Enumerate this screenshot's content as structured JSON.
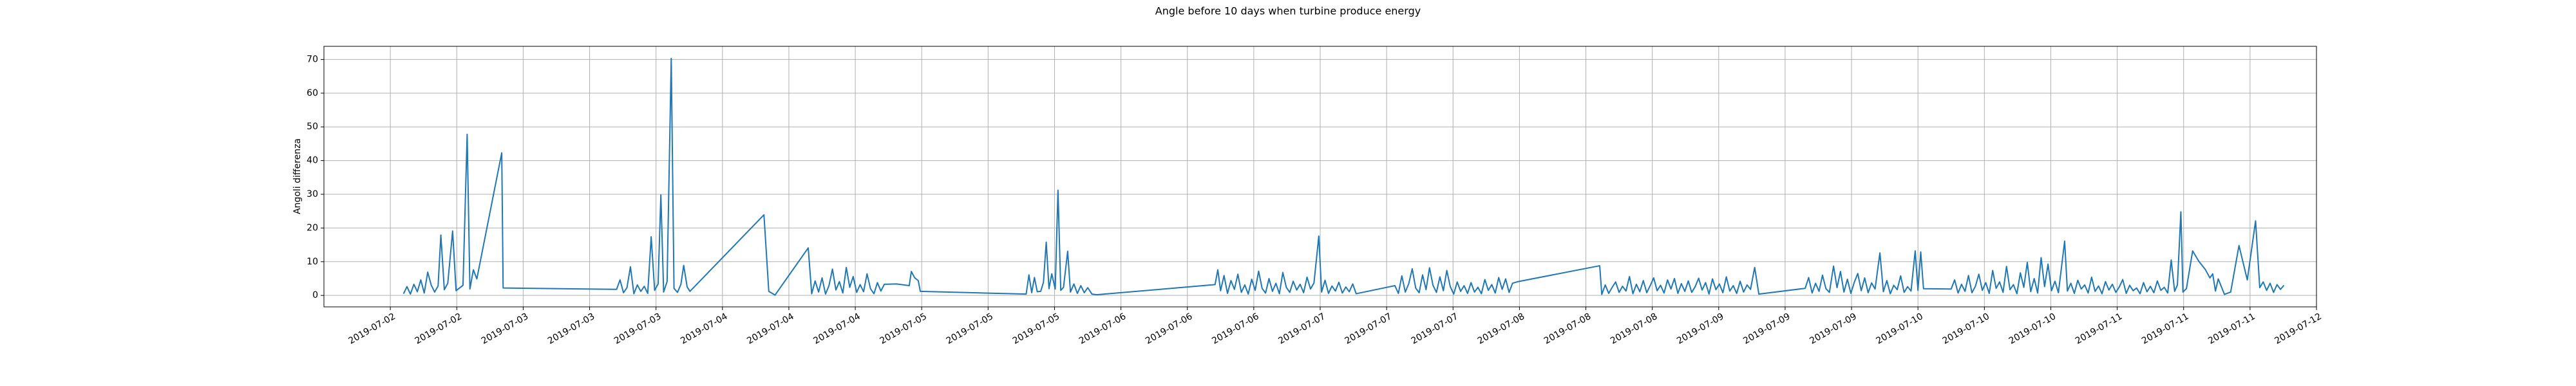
{
  "chart_data": {
    "type": "line",
    "title": "Angle before 10 days when turbine produce energy",
    "y_label": "Angoli differenza",
    "color": "#1f77b4",
    "grid": true,
    "xlim": [
      "2019-07-02T00:00",
      "2019-07-12T00:00"
    ],
    "xticks": [
      {
        "value": "2019-07-02T08:00",
        "label": "2019-07-02"
      },
      {
        "value": "2019-07-02T16:00",
        "label": "2019-07-02"
      },
      {
        "value": "2019-07-03T00:00",
        "label": "2019-07-03"
      },
      {
        "value": "2019-07-03T08:00",
        "label": "2019-07-03"
      },
      {
        "value": "2019-07-03T16:00",
        "label": "2019-07-03"
      },
      {
        "value": "2019-07-04T00:00",
        "label": "2019-07-04"
      },
      {
        "value": "2019-07-04T08:00",
        "label": "2019-07-04"
      },
      {
        "value": "2019-07-04T16:00",
        "label": "2019-07-04"
      },
      {
        "value": "2019-07-05T00:00",
        "label": "2019-07-05"
      },
      {
        "value": "2019-07-05T08:00",
        "label": "2019-07-05"
      },
      {
        "value": "2019-07-05T16:00",
        "label": "2019-07-05"
      },
      {
        "value": "2019-07-06T00:00",
        "label": "2019-07-06"
      },
      {
        "value": "2019-07-06T08:00",
        "label": "2019-07-06"
      },
      {
        "value": "2019-07-06T16:00",
        "label": "2019-07-06"
      },
      {
        "value": "2019-07-07T00:00",
        "label": "2019-07-07"
      },
      {
        "value": "2019-07-07T08:00",
        "label": "2019-07-07"
      },
      {
        "value": "2019-07-07T16:00",
        "label": "2019-07-07"
      },
      {
        "value": "2019-07-08T00:00",
        "label": "2019-07-08"
      },
      {
        "value": "2019-07-08T08:00",
        "label": "2019-07-08"
      },
      {
        "value": "2019-07-08T16:00",
        "label": "2019-07-08"
      },
      {
        "value": "2019-07-09T00:00",
        "label": "2019-07-09"
      },
      {
        "value": "2019-07-09T08:00",
        "label": "2019-07-09"
      },
      {
        "value": "2019-07-09T16:00",
        "label": "2019-07-09"
      },
      {
        "value": "2019-07-10T00:00",
        "label": "2019-07-10"
      },
      {
        "value": "2019-07-10T08:00",
        "label": "2019-07-10"
      },
      {
        "value": "2019-07-10T16:00",
        "label": "2019-07-10"
      },
      {
        "value": "2019-07-11T00:00",
        "label": "2019-07-11"
      },
      {
        "value": "2019-07-11T08:00",
        "label": "2019-07-11"
      },
      {
        "value": "2019-07-11T16:00",
        "label": "2019-07-11"
      },
      {
        "value": "2019-07-12T00:00",
        "label": "2019-07-12"
      }
    ],
    "ylim": [
      -3.4,
      73.9
    ],
    "yticks": [
      0,
      10,
      20,
      30,
      40,
      50,
      60,
      70
    ],
    "x": [
      "2019-07-02T09:35",
      "2019-07-02T10:00",
      "2019-07-02T10:25",
      "2019-07-02T10:50",
      "2019-07-02T11:15",
      "2019-07-02T11:40",
      "2019-07-02T12:05",
      "2019-07-02T12:30",
      "2019-07-02T12:55",
      "2019-07-02T13:20",
      "2019-07-02T13:45",
      "2019-07-02T14:05",
      "2019-07-02T14:30",
      "2019-07-02T14:55",
      "2019-07-02T15:30",
      "2019-07-02T15:55",
      "2019-07-02T16:20",
      "2019-07-02T16:45",
      "2019-07-02T17:15",
      "2019-07-02T17:35",
      "2019-07-02T18:00",
      "2019-07-02T18:25",
      "2019-07-02T21:25",
      "2019-07-02T21:35",
      "2019-07-03T11:15",
      "2019-07-03T11:40",
      "2019-07-03T12:05",
      "2019-07-03T12:30",
      "2019-07-03T12:55",
      "2019-07-03T13:20",
      "2019-07-03T13:45",
      "2019-07-03T14:10",
      "2019-07-03T14:35",
      "2019-07-03T15:00",
      "2019-07-03T15:25",
      "2019-07-03T15:50",
      "2019-07-03T16:15",
      "2019-07-03T16:35",
      "2019-07-03T16:55",
      "2019-07-03T17:20",
      "2019-07-03T17:50",
      "2019-07-03T18:10",
      "2019-07-03T18:35",
      "2019-07-03T19:00",
      "2019-07-03T19:20",
      "2019-07-03T19:45",
      "2019-07-03T20:05",
      "2019-07-04T05:00",
      "2019-07-04T05:35",
      "2019-07-04T06:20",
      "2019-07-04T10:20",
      "2019-07-04T10:45",
      "2019-07-04T11:10",
      "2019-07-04T11:35",
      "2019-07-04T12:00",
      "2019-07-04T12:25",
      "2019-07-04T12:50",
      "2019-07-04T13:15",
      "2019-07-04T13:40",
      "2019-07-04T14:05",
      "2019-07-04T14:30",
      "2019-07-04T14:55",
      "2019-07-04T15:20",
      "2019-07-04T15:45",
      "2019-07-04T16:10",
      "2019-07-04T16:35",
      "2019-07-04T17:00",
      "2019-07-04T17:25",
      "2019-07-04T17:50",
      "2019-07-04T18:15",
      "2019-07-04T18:40",
      "2019-07-04T19:05",
      "2019-07-04T19:30",
      "2019-07-04T21:00",
      "2019-07-04T22:30",
      "2019-07-04T22:45",
      "2019-07-04T23:10",
      "2019-07-04T23:35",
      "2019-07-04T23:50",
      "2019-07-05T12:35",
      "2019-07-05T12:55",
      "2019-07-05T13:15",
      "2019-07-05T13:35",
      "2019-07-05T13:55",
      "2019-07-05T14:20",
      "2019-07-05T14:40",
      "2019-07-05T15:00",
      "2019-07-05T15:20",
      "2019-07-05T15:40",
      "2019-07-05T16:05",
      "2019-07-05T16:25",
      "2019-07-05T16:45",
      "2019-07-05T17:05",
      "2019-07-05T17:35",
      "2019-07-05T17:55",
      "2019-07-05T18:20",
      "2019-07-05T18:45",
      "2019-07-05T19:10",
      "2019-07-05T19:35",
      "2019-07-05T20:00",
      "2019-07-05T20:30",
      "2019-07-05T21:05",
      "2019-07-06T11:20",
      "2019-07-06T11:40",
      "2019-07-06T12:00",
      "2019-07-06T12:25",
      "2019-07-06T12:50",
      "2019-07-06T13:15",
      "2019-07-06T13:40",
      "2019-07-06T14:05",
      "2019-07-06T14:30",
      "2019-07-06T14:55",
      "2019-07-06T15:20",
      "2019-07-06T15:45",
      "2019-07-06T16:10",
      "2019-07-06T16:35",
      "2019-07-06T17:00",
      "2019-07-06T17:25",
      "2019-07-06T17:50",
      "2019-07-06T18:15",
      "2019-07-06T18:40",
      "2019-07-06T19:05",
      "2019-07-06T19:30",
      "2019-07-06T19:55",
      "2019-07-06T20:20",
      "2019-07-06T20:45",
      "2019-07-06T21:10",
      "2019-07-06T21:35",
      "2019-07-06T22:00",
      "2019-07-06T22:25",
      "2019-07-06T22:50",
      "2019-07-06T23:15",
      "2019-07-06T23:50",
      "2019-07-07T00:10",
      "2019-07-07T00:35",
      "2019-07-07T01:00",
      "2019-07-07T01:25",
      "2019-07-07T01:50",
      "2019-07-07T02:15",
      "2019-07-07T02:40",
      "2019-07-07T03:05",
      "2019-07-07T03:30",
      "2019-07-07T03:55",
      "2019-07-07T04:20",
      "2019-07-07T09:00",
      "2019-07-07T09:25",
      "2019-07-07T09:50",
      "2019-07-07T10:15",
      "2019-07-07T10:40",
      "2019-07-07T11:05",
      "2019-07-07T11:30",
      "2019-07-07T11:55",
      "2019-07-07T12:20",
      "2019-07-07T12:45",
      "2019-07-07T13:10",
      "2019-07-07T13:35",
      "2019-07-07T14:00",
      "2019-07-07T14:25",
      "2019-07-07T14:50",
      "2019-07-07T15:15",
      "2019-07-07T15:40",
      "2019-07-07T16:05",
      "2019-07-07T16:30",
      "2019-07-07T16:55",
      "2019-07-07T17:20",
      "2019-07-07T17:45",
      "2019-07-07T18:10",
      "2019-07-07T18:35",
      "2019-07-07T19:00",
      "2019-07-07T19:25",
      "2019-07-07T19:50",
      "2019-07-07T20:15",
      "2019-07-07T20:40",
      "2019-07-07T21:05",
      "2019-07-07T21:30",
      "2019-07-07T21:55",
      "2019-07-07T22:20",
      "2019-07-07T22:45",
      "2019-07-07T23:10",
      "2019-07-07T23:50",
      "2019-07-08T09:40",
      "2019-07-08T09:55",
      "2019-07-08T10:20",
      "2019-07-08T10:45",
      "2019-07-08T11:10",
      "2019-07-08T11:35",
      "2019-07-08T12:00",
      "2019-07-08T12:25",
      "2019-07-08T12:50",
      "2019-07-08T13:15",
      "2019-07-08T13:40",
      "2019-07-08T14:05",
      "2019-07-08T14:30",
      "2019-07-08T14:55",
      "2019-07-08T15:20",
      "2019-07-08T15:45",
      "2019-07-08T16:10",
      "2019-07-08T16:35",
      "2019-07-08T17:00",
      "2019-07-08T17:25",
      "2019-07-08T17:50",
      "2019-07-08T18:15",
      "2019-07-08T18:40",
      "2019-07-08T19:05",
      "2019-07-08T19:30",
      "2019-07-08T19:55",
      "2019-07-08T20:20",
      "2019-07-08T20:45",
      "2019-07-08T21:10",
      "2019-07-08T21:35",
      "2019-07-08T22:00",
      "2019-07-08T22:25",
      "2019-07-08T22:50",
      "2019-07-08T23:15",
      "2019-07-08T23:40",
      "2019-07-09T00:05",
      "2019-07-09T00:30",
      "2019-07-09T00:55",
      "2019-07-09T01:20",
      "2019-07-09T01:45",
      "2019-07-09T02:10",
      "2019-07-09T02:35",
      "2019-07-09T03:00",
      "2019-07-09T03:25",
      "2019-07-09T03:50",
      "2019-07-09T04:20",
      "2019-07-09T04:50",
      "2019-07-09T10:25",
      "2019-07-09T10:50",
      "2019-07-09T11:15",
      "2019-07-09T11:40",
      "2019-07-09T12:05",
      "2019-07-09T12:30",
      "2019-07-09T12:55",
      "2019-07-09T13:20",
      "2019-07-09T13:50",
      "2019-07-09T14:15",
      "2019-07-09T14:40",
      "2019-07-09T15:05",
      "2019-07-09T15:30",
      "2019-07-09T15:55",
      "2019-07-09T16:20",
      "2019-07-09T16:45",
      "2019-07-09T17:10",
      "2019-07-09T17:35",
      "2019-07-09T18:00",
      "2019-07-09T18:25",
      "2019-07-09T18:50",
      "2019-07-09T19:25",
      "2019-07-09T19:50",
      "2019-07-09T20:15",
      "2019-07-09T20:40",
      "2019-07-09T21:05",
      "2019-07-09T21:30",
      "2019-07-09T21:55",
      "2019-07-09T22:20",
      "2019-07-09T22:45",
      "2019-07-09T23:10",
      "2019-07-09T23:40",
      "2019-07-10T00:00",
      "2019-07-10T00:20",
      "2019-07-10T00:40",
      "2019-07-10T04:00",
      "2019-07-10T04:25",
      "2019-07-10T04:50",
      "2019-07-10T05:15",
      "2019-07-10T05:40",
      "2019-07-10T06:05",
      "2019-07-10T06:30",
      "2019-07-10T06:55",
      "2019-07-10T07:20",
      "2019-07-10T07:45",
      "2019-07-10T08:10",
      "2019-07-10T08:35",
      "2019-07-10T09:00",
      "2019-07-10T09:25",
      "2019-07-10T09:50",
      "2019-07-10T10:15",
      "2019-07-10T10:40",
      "2019-07-10T11:05",
      "2019-07-10T11:30",
      "2019-07-10T11:55",
      "2019-07-10T12:20",
      "2019-07-10T12:45",
      "2019-07-10T13:10",
      "2019-07-10T13:35",
      "2019-07-10T14:00",
      "2019-07-10T14:25",
      "2019-07-10T14:50",
      "2019-07-10T15:15",
      "2019-07-10T15:40",
      "2019-07-10T16:05",
      "2019-07-10T16:30",
      "2019-07-10T16:55",
      "2019-07-10T17:40",
      "2019-07-10T18:00",
      "2019-07-10T18:25",
      "2019-07-10T18:50",
      "2019-07-10T19:15",
      "2019-07-10T19:40",
      "2019-07-10T20:05",
      "2019-07-10T20:30",
      "2019-07-10T20:55",
      "2019-07-10T21:20",
      "2019-07-10T21:45",
      "2019-07-10T22:10",
      "2019-07-10T22:35",
      "2019-07-10T23:00",
      "2019-07-10T23:25",
      "2019-07-10T23:50",
      "2019-07-11T00:15",
      "2019-07-11T00:40",
      "2019-07-11T01:05",
      "2019-07-11T01:30",
      "2019-07-11T01:55",
      "2019-07-11T02:20",
      "2019-07-11T02:45",
      "2019-07-11T03:10",
      "2019-07-11T03:35",
      "2019-07-11T04:00",
      "2019-07-11T04:25",
      "2019-07-11T04:50",
      "2019-07-11T05:15",
      "2019-07-11T05:40",
      "2019-07-11T06:05",
      "2019-07-11T06:30",
      "2019-07-11T06:55",
      "2019-07-11T07:15",
      "2019-07-11T07:40",
      "2019-07-11T07:55",
      "2019-07-11T08:20",
      "2019-07-11T09:05",
      "2019-07-11T09:50",
      "2019-07-11T10:35",
      "2019-07-11T11:10",
      "2019-07-11T11:30",
      "2019-07-11T11:50",
      "2019-07-11T12:10",
      "2019-07-11T12:55",
      "2019-07-11T13:40",
      "2019-07-11T14:40",
      "2019-07-11T15:40",
      "2019-07-11T16:40",
      "2019-07-11T17:10",
      "2019-07-11T17:35",
      "2019-07-11T18:00",
      "2019-07-11T18:25",
      "2019-07-11T18:50",
      "2019-07-11T19:15",
      "2019-07-11T19:40",
      "2019-07-11T20:05"
    ],
    "values": [
      0.5,
      2.6,
      0.4,
      3.3,
      1.1,
      4.6,
      0.7,
      6.9,
      3.1,
      1.0,
      2.8,
      17.9,
      1.7,
      3.6,
      19.1,
      1.4,
      2.2,
      3.0,
      47.8,
      1.9,
      7.6,
      4.9,
      42.3,
      2.2,
      1.8,
      4.6,
      0.8,
      2.3,
      8.5,
      0.5,
      3.1,
      1.2,
      2.7,
      0.6,
      17.4,
      1.5,
      3.4,
      29.8,
      1.0,
      4.1,
      70.3,
      2.1,
      0.9,
      3.3,
      8.9,
      2.5,
      1.2,
      23.9,
      1.2,
      0.1,
      14.1,
      0.5,
      4.3,
      1.0,
      5.2,
      0.4,
      2.9,
      7.8,
      1.6,
      4.1,
      0.7,
      8.3,
      2.4,
      5.6,
      0.9,
      3.2,
      1.1,
      6.4,
      2.0,
      0.5,
      3.8,
      1.3,
      3.3,
      3.4,
      2.9,
      7.1,
      5.2,
      4.4,
      1.2,
      0.4,
      6.1,
      0.8,
      5.3,
      1.1,
      1.2,
      3.9,
      15.8,
      2.0,
      6.4,
      1.9,
      31.2,
      1.5,
      2.4,
      13.1,
      1.0,
      3.4,
      0.6,
      2.9,
      0.8,
      2.3,
      0.4,
      0.2,
      3.2,
      7.6,
      1.4,
      5.9,
      0.6,
      4.4,
      1.8,
      6.3,
      0.9,
      3.1,
      0.4,
      4.8,
      1.5,
      7.2,
      2.1,
      0.7,
      5.0,
      1.2,
      3.6,
      0.5,
      6.8,
      2.4,
      0.9,
      4.2,
      1.6,
      3.3,
      0.8,
      5.4,
      1.9,
      3.7,
      17.6,
      1.0,
      4.5,
      0.6,
      2.8,
      1.3,
      3.9,
      0.7,
      2.5,
      1.1,
      3.4,
      0.5,
      2.9,
      0.6,
      5.8,
      1.0,
      3.5,
      7.9,
      2.2,
      0.8,
      6.1,
      1.7,
      8.2,
      3.0,
      0.9,
      5.5,
      1.4,
      7.4,
      2.6,
      0.4,
      4.0,
      1.2,
      2.9,
      0.6,
      3.8,
      1.0,
      2.4,
      0.5,
      4.7,
      1.5,
      3.2,
      0.7,
      5.3,
      1.8,
      4.9,
      0.9,
      3.6,
      4.1,
      8.8,
      0.3,
      3.1,
      0.6,
      2.4,
      4.0,
      0.9,
      2.7,
      1.3,
      5.6,
      0.5,
      3.3,
      1.1,
      4.4,
      0.8,
      2.9,
      5.2,
      1.4,
      3.0,
      0.7,
      4.6,
      1.9,
      5.0,
      0.6,
      3.5,
      1.2,
      4.3,
      0.9,
      2.6,
      5.1,
      1.6,
      3.8,
      0.4,
      4.9,
      1.7,
      3.4,
      0.8,
      5.5,
      1.3,
      2.9,
      0.6,
      4.2,
      1.0,
      3.1,
      1.8,
      8.3,
      0.4,
      2.1,
      5.3,
      0.7,
      3.6,
      1.2,
      6.0,
      2.0,
      0.9,
      8.7,
      2.3,
      7.1,
      1.0,
      4.8,
      0.6,
      3.9,
      6.5,
      1.4,
      5.2,
      0.8,
      3.7,
      1.9,
      12.6,
      1.1,
      4.4,
      0.5,
      3.0,
      1.7,
      5.8,
      0.9,
      2.6,
      1.3,
      13.2,
      1.5,
      12.9,
      2.0,
      1.9,
      4.6,
      0.7,
      3.3,
      1.2,
      5.9,
      0.8,
      2.7,
      6.3,
      1.5,
      3.8,
      0.6,
      7.4,
      2.1,
      4.0,
      0.9,
      8.6,
      1.7,
      3.2,
      0.5,
      6.7,
      2.4,
      9.8,
      1.1,
      5.0,
      0.7,
      11.2,
      2.6,
      9.3,
      1.4,
      4.2,
      0.8,
      16.1,
      1.3,
      3.6,
      0.6,
      4.5,
      1.9,
      3.1,
      0.7,
      5.4,
      1.2,
      2.8,
      0.5,
      4.1,
      1.6,
      3.3,
      0.9,
      2.5,
      4.7,
      0.6,
      3.0,
      1.4,
      2.2,
      0.5,
      3.8,
      1.1,
      2.7,
      0.8,
      4.3,
      1.5,
      2.4,
      0.7,
      10.5,
      1.2,
      3.1,
      24.8,
      1.0,
      2.0,
      13.2,
      10.1,
      7.8,
      5.2,
      6.4,
      1.3,
      4.9,
      0.3,
      1.0,
      14.8,
      4.6,
      22.1,
      2.3,
      4.0,
      1.5,
      3.6,
      0.9,
      3.2,
      1.8,
      3.0
    ]
  }
}
